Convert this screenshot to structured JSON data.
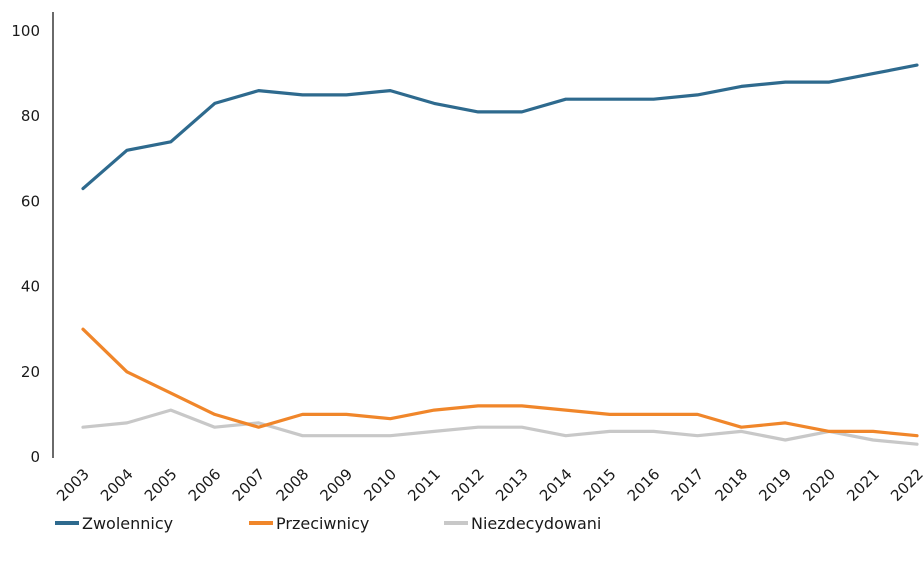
{
  "chart_data": {
    "type": "line",
    "categories": [
      "2003",
      "2004",
      "2005",
      "2006",
      "2007",
      "2008",
      "2009",
      "2010",
      "2011",
      "2012",
      "2013",
      "2014",
      "2015",
      "2016",
      "2017",
      "2018",
      "2019",
      "2020",
      "2021",
      "2022"
    ],
    "series": [
      {
        "name": "Zwolennicy",
        "color": "#2e6a8e",
        "values": [
          63,
          72,
          74,
          83,
          86,
          85,
          85,
          86,
          83,
          81,
          81,
          84,
          84,
          84,
          85,
          87,
          88,
          88,
          90,
          92
        ]
      },
      {
        "name": "Przeciwnicy",
        "color": "#f0862a",
        "values": [
          30,
          20,
          15,
          10,
          7,
          10,
          10,
          9,
          11,
          12,
          12,
          11,
          10,
          10,
          10,
          7,
          8,
          6,
          6,
          5
        ]
      },
      {
        "name": "Niezdecydowani",
        "color": "#c8c8c8",
        "values": [
          7,
          8,
          11,
          7,
          8,
          5,
          5,
          5,
          6,
          7,
          7,
          5,
          6,
          6,
          5,
          6,
          4,
          6,
          4,
          3
        ]
      }
    ],
    "y_ticks": [
      0,
      20,
      40,
      60,
      80,
      100
    ],
    "ylim": [
      0,
      100
    ],
    "grid": false,
    "legend_position": "bottom-left"
  }
}
